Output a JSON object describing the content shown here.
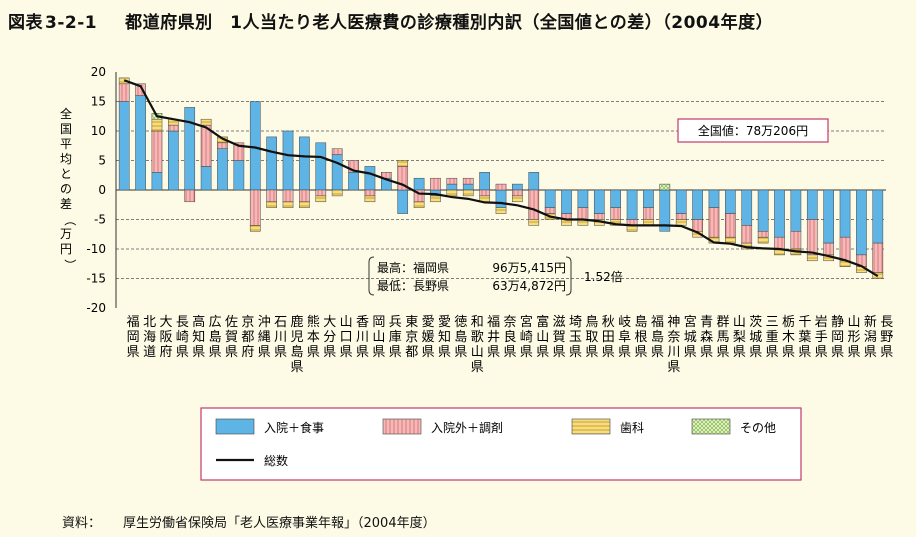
{
  "title": {
    "fig_label": "図表",
    "fig_number": "3-2-1",
    "text": "都道府県別　1人当たり老人医療費の診療種別内訳（全国値との差）（2004年度）"
  },
  "source": {
    "label": "資料：",
    "text": "厚生労働省保険局「老人医療事業年報」（2004年度）"
  },
  "annotations": {
    "national_value": "全国値：78万206円",
    "max_label": "最高：福岡県",
    "max_value": "96万5,415円",
    "min_label": "最低：長野県",
    "min_value": "63万4,872円",
    "ratio": "1.52倍"
  },
  "chart_data": {
    "type": "bar",
    "stacked": true,
    "ylabel": "全国平均との差（万円）",
    "ylim": [
      -20,
      20
    ],
    "yticks": [
      20,
      15,
      10,
      5,
      0,
      -5,
      -10,
      -15,
      -20
    ],
    "grid": true,
    "legend_position": "bottom",
    "categories": [
      "福岡県",
      "北海道",
      "大阪府",
      "長崎県",
      "高知県",
      "広島県",
      "佐賀県",
      "京都府",
      "沖縄県",
      "石川県",
      "鹿児島県",
      "熊本県",
      "大分県",
      "山口県",
      "香川県",
      "岡山県",
      "兵庫県",
      "東京都",
      "愛媛県",
      "愛知県",
      "徳島県",
      "和歌山県",
      "福井県",
      "奈良県",
      "宮崎県",
      "富山県",
      "滋賀県",
      "埼玉県",
      "鳥取県",
      "秋田県",
      "岐阜県",
      "島根県",
      "福島県",
      "神奈川県",
      "宮城県",
      "青森県",
      "群馬県",
      "山梨県",
      "茨城県",
      "三重県",
      "栃木県",
      "千葉県",
      "岩手県",
      "静岡県",
      "山形県",
      "新潟県",
      "長野県"
    ],
    "series": [
      {
        "name": "入院＋食事",
        "color": "#5fb4e6",
        "values": [
          15,
          16,
          3,
          10,
          14,
          4,
          7,
          5,
          15,
          9,
          10,
          9,
          8,
          6,
          3,
          4,
          2,
          -4,
          2,
          -1,
          1,
          1,
          3,
          -3,
          1,
          3,
          -3,
          -4,
          -3,
          -4,
          -3,
          -5,
          -3,
          -7,
          -4,
          -5,
          -3,
          -4,
          -6,
          -7,
          -8,
          -7,
          -5,
          -9,
          -8,
          -11,
          -9
        ]
      },
      {
        "name": "入院外＋調剤",
        "color": "#f5b8b8",
        "values": [
          3,
          2,
          7,
          1,
          -2,
          7,
          1,
          3,
          -6,
          -2,
          -2,
          -2,
          -1,
          1,
          2,
          -1,
          1,
          4,
          -2,
          2,
          1,
          1,
          -1,
          1,
          -1,
          -5,
          -1,
          -1,
          -2,
          -1,
          -2,
          -1,
          -2,
          0,
          -1,
          -2,
          -5,
          -4,
          -3,
          -1,
          -2,
          -3,
          -6,
          -2,
          -4,
          -2,
          -5
        ]
      },
      {
        "name": "歯科",
        "color": "#f7dd82",
        "values": [
          1,
          0,
          2,
          1,
          0,
          1,
          1,
          0,
          -1,
          -1,
          -1,
          -1,
          -1,
          -1,
          0,
          -1,
          0,
          1,
          -1,
          -1,
          -1,
          -1,
          -1,
          -1,
          -1,
          -1,
          -1,
          -1,
          -1,
          -1,
          -1,
          -1,
          -1,
          0,
          -1,
          -1,
          -1,
          -1,
          -1,
          -1,
          -1,
          -1,
          -1,
          -1,
          -1,
          -1,
          -1
        ]
      },
      {
        "name": "その他",
        "color": "#d8eeb0",
        "values": [
          0,
          0,
          1,
          0,
          0,
          0,
          0,
          0,
          0,
          0,
          0,
          0,
          0,
          0,
          0,
          0,
          0,
          0,
          0,
          0,
          0,
          0,
          0,
          0,
          0,
          0,
          0,
          0,
          0,
          0,
          0,
          0,
          0,
          1,
          0,
          0,
          0,
          0,
          0,
          0,
          0,
          0,
          0,
          0,
          0,
          0,
          0
        ]
      }
    ],
    "total": {
      "name": "総数",
      "color": "#111111",
      "values": [
        18.6,
        17.6,
        12.5,
        12,
        11.5,
        10.6,
        8.7,
        7.5,
        7.2,
        6.5,
        5.9,
        5.7,
        5.6,
        4.6,
        3.3,
        2.8,
        1.8,
        0.9,
        -0.6,
        -0.7,
        -1.2,
        -1.5,
        -2.1,
        -2.2,
        -2.6,
        -3.3,
        -4.5,
        -5,
        -5,
        -5.3,
        -5.8,
        -6.0,
        -6.0,
        -6.0,
        -6.1,
        -7.2,
        -8.9,
        -9.1,
        -9.7,
        -9.9,
        -10.0,
        -10.4,
        -10.6,
        -11.2,
        -11.9,
        -12.9,
        -14.6
      ]
    }
  }
}
